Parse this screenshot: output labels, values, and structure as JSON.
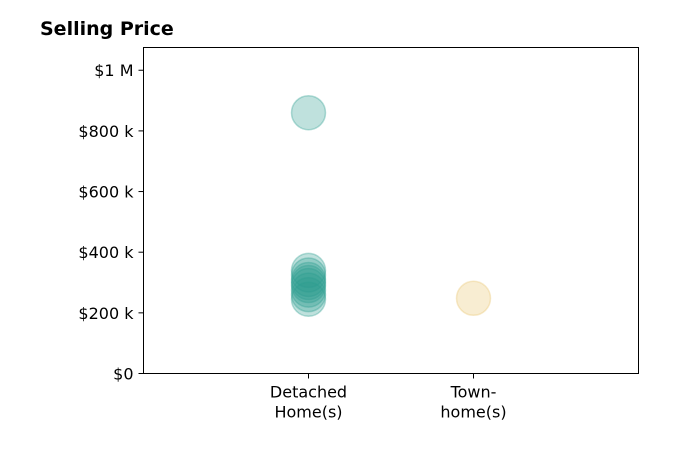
{
  "chart_data": {
    "type": "scatter",
    "title": "Selling Price",
    "xlabel": "",
    "ylabel": "",
    "categories": [
      [
        "Detached",
        "Home(s)"
      ],
      [
        "Town-",
        "home(s)"
      ]
    ],
    "ylim": [
      0,
      1075000
    ],
    "yticks": [
      0,
      200000,
      400000,
      600000,
      800000,
      1000000
    ],
    "ytick_labels": [
      "$0",
      "$200 k",
      "$400 k",
      "$600 k",
      "$800 k",
      "$1 M"
    ],
    "grid": false,
    "legend": "none",
    "series": [
      {
        "category_index": 0,
        "color": "#2a9d8f",
        "values": [
          860000,
          340000,
          325000,
          310000,
          300000,
          290000,
          275000,
          260000,
          245000
        ]
      },
      {
        "category_index": 1,
        "color": "#e9c46a",
        "values": [
          248000
        ]
      }
    ]
  }
}
